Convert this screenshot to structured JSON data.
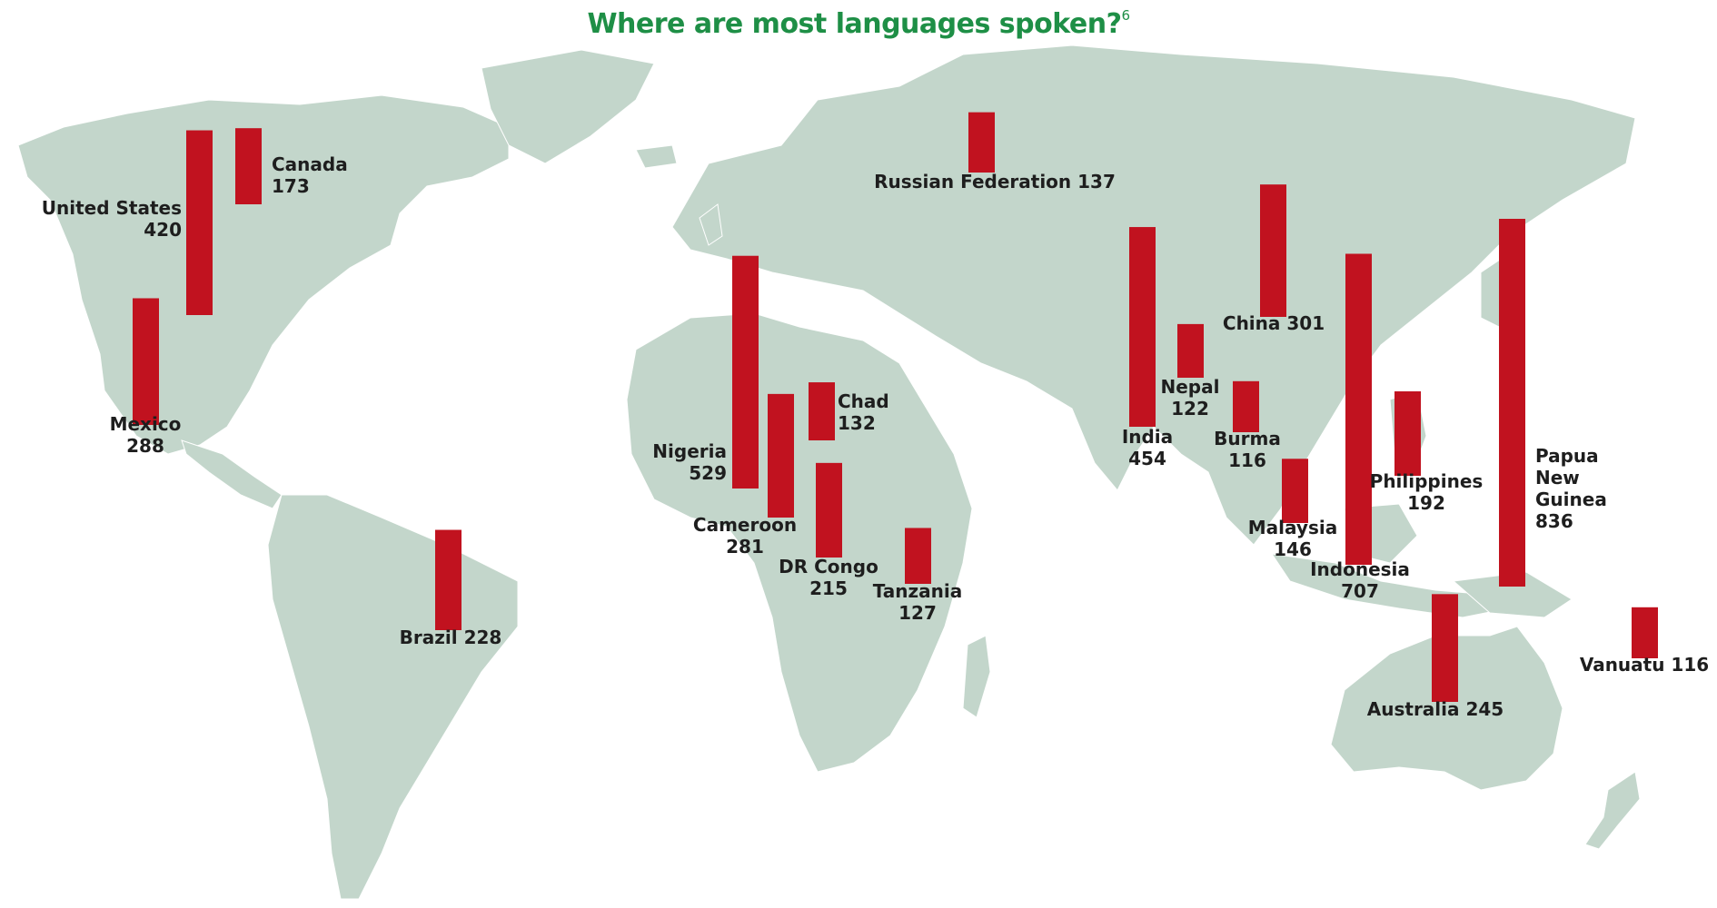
{
  "title": "Where are most languages spoken?",
  "title_note": "6",
  "colors": {
    "bar": "#c1121f",
    "land": "#c3d6cb",
    "title": "#1e8f46",
    "label": "#1e1e1e"
  },
  "chart_data": {
    "type": "bar",
    "title": "Where are most languages spoken?",
    "unit": "languages",
    "series": [
      {
        "country": "United States",
        "value": 420,
        "label_lines": [
          "United States",
          "420"
        ]
      },
      {
        "country": "Canada",
        "value": 173,
        "label_lines": [
          "Canada",
          "173"
        ]
      },
      {
        "country": "Mexico",
        "value": 288,
        "label_lines": [
          "Mexico",
          "288"
        ]
      },
      {
        "country": "Brazil",
        "value": 228,
        "label_lines": [
          "Brazil 228"
        ]
      },
      {
        "country": "Russian Federation",
        "value": 137,
        "label_lines": [
          "Russian Federation 137"
        ]
      },
      {
        "country": "Nigeria",
        "value": 529,
        "label_lines": [
          "Nigeria",
          "529"
        ]
      },
      {
        "country": "Cameroon",
        "value": 281,
        "label_lines": [
          "Cameroon",
          "281"
        ]
      },
      {
        "country": "Chad",
        "value": 132,
        "label_lines": [
          "Chad",
          "132"
        ]
      },
      {
        "country": "DR Congo",
        "value": 215,
        "label_lines": [
          "DR Congo",
          "215"
        ]
      },
      {
        "country": "Tanzania",
        "value": 127,
        "label_lines": [
          "Tanzania",
          "127"
        ]
      },
      {
        "country": "India",
        "value": 454,
        "label_lines": [
          "India",
          "454"
        ]
      },
      {
        "country": "Nepal",
        "value": 122,
        "label_lines": [
          "Nepal",
          "122"
        ]
      },
      {
        "country": "China",
        "value": 301,
        "label_lines": [
          "China 301"
        ]
      },
      {
        "country": "Burma",
        "value": 116,
        "label_lines": [
          "Burma",
          "116"
        ]
      },
      {
        "country": "Malaysia",
        "value": 146,
        "label_lines": [
          "Malaysia",
          "146"
        ]
      },
      {
        "country": "Indonesia",
        "value": 707,
        "label_lines": [
          "Indonesia",
          "707"
        ]
      },
      {
        "country": "Philippines",
        "value": 192,
        "label_lines": [
          "Philippines",
          "192"
        ]
      },
      {
        "country": "Papua New Guinea",
        "value": 836,
        "label_lines": [
          "Papua",
          "New",
          "Guinea",
          "836"
        ]
      },
      {
        "country": "Australia",
        "value": 245,
        "label_lines": [
          "Australia 245"
        ]
      },
      {
        "country": "Vanuatu",
        "value": 116,
        "label_lines": [
          "Vanuatu 116"
        ]
      }
    ]
  }
}
